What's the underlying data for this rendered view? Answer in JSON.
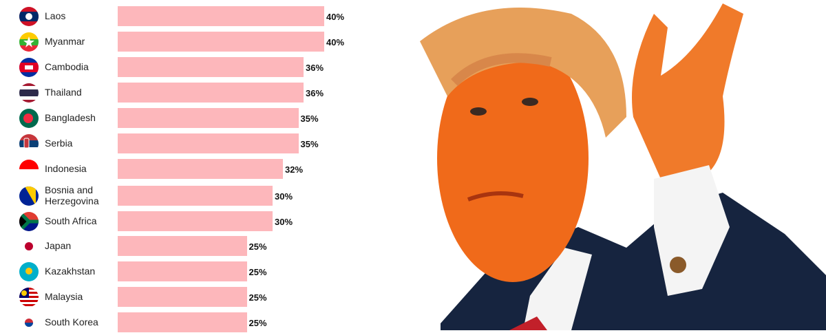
{
  "chart_data": {
    "type": "bar",
    "orientation": "horizontal",
    "title": "",
    "xlabel": "",
    "ylabel": "",
    "xlim": [
      0,
      40
    ],
    "unit": "%",
    "bar_color": "#fdb7bb",
    "categories": [
      "Laos",
      "Myanmar",
      "Cambodia",
      "Thailand",
      "Bangladesh",
      "Serbia",
      "Indonesia",
      "Bosnia and Herzegovina",
      "South Africa",
      "Japan",
      "Kazakhstan",
      "Malaysia",
      "South Korea"
    ],
    "label_lines": [
      [
        "Laos"
      ],
      [
        "Myanmar"
      ],
      [
        "Cambodia"
      ],
      [
        "Thailand"
      ],
      [
        "Bangladesh"
      ],
      [
        "Serbia"
      ],
      [
        "Indonesia"
      ],
      [
        "Bosnia and",
        "Herzegovina"
      ],
      [
        "South Africa"
      ],
      [
        "Japan"
      ],
      [
        "Kazakhstan"
      ],
      [
        "Malaysia"
      ],
      [
        "South Korea"
      ]
    ],
    "values": [
      40,
      40,
      36,
      36,
      35,
      35,
      32,
      30,
      30,
      25,
      25,
      25,
      25
    ],
    "value_labels": [
      "40%",
      "40%",
      "36%",
      "36%",
      "35%",
      "35%",
      "32%",
      "30%",
      "30%",
      "25%",
      "25%",
      "25%",
      "25%"
    ],
    "flag_icons": [
      "laos-flag-icon",
      "myanmar-flag-icon",
      "cambodia-flag-icon",
      "thailand-flag-icon",
      "bangladesh-flag-icon",
      "serbia-flag-icon",
      "indonesia-flag-icon",
      "bosnia-flag-icon",
      "south-africa-flag-icon",
      "japan-flag-icon",
      "kazakhstan-flag-icon",
      "malaysia-flag-icon",
      "south-korea-flag-icon"
    ]
  }
}
